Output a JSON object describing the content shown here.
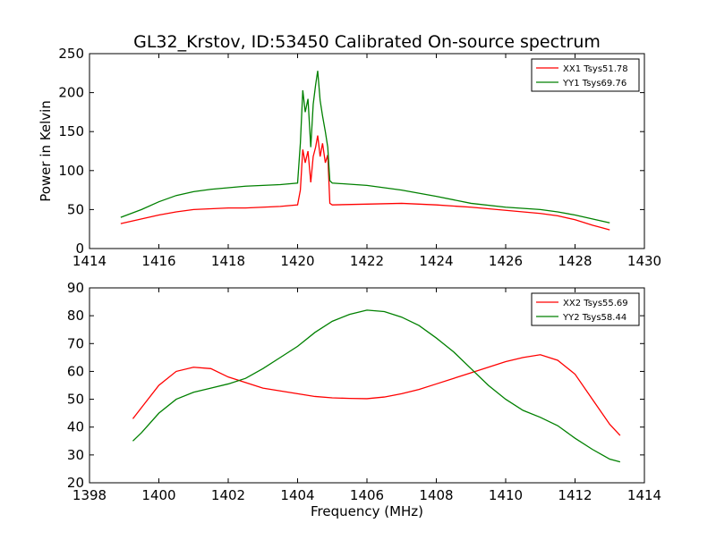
{
  "figure": {
    "title": "GL32_Krstov, ID:53450 Calibrated On-source spectrum"
  },
  "chart_data": [
    {
      "type": "line",
      "title": "GL32_Krstov, ID:53450 Calibrated On-source spectrum",
      "xlabel": "",
      "ylabel": "Power in Kelvin",
      "xlim": [
        1414,
        1430
      ],
      "ylim": [
        0,
        250
      ],
      "xticks": [
        1414,
        1416,
        1418,
        1420,
        1422,
        1424,
        1426,
        1428,
        1430
      ],
      "yticks": [
        0,
        50,
        100,
        150,
        200,
        250
      ],
      "grid": false,
      "legend": "top-right",
      "series": [
        {
          "name": "XX1 Tsys51.78",
          "color": "#ff0000",
          "points": [
            [
              1414.9,
              32
            ],
            [
              1415.5,
              38
            ],
            [
              1416,
              43
            ],
            [
              1416.5,
              47
            ],
            [
              1417,
              50
            ],
            [
              1417.5,
              51
            ],
            [
              1418,
              52
            ],
            [
              1418.5,
              52
            ],
            [
              1419,
              53
            ],
            [
              1419.5,
              54
            ],
            [
              1420,
              56
            ],
            [
              1420.08,
              75
            ],
            [
              1420.15,
              127
            ],
            [
              1420.22,
              110
            ],
            [
              1420.3,
              125
            ],
            [
              1420.38,
              85
            ],
            [
              1420.45,
              118
            ],
            [
              1420.52,
              130
            ],
            [
              1420.58,
              145
            ],
            [
              1420.65,
              118
            ],
            [
              1420.72,
              135
            ],
            [
              1420.8,
              110
            ],
            [
              1420.87,
              120
            ],
            [
              1420.93,
              58
            ],
            [
              1421,
              56
            ],
            [
              1422,
              57
            ],
            [
              1423,
              58
            ],
            [
              1424,
              56
            ],
            [
              1425,
              53
            ],
            [
              1426,
              49
            ],
            [
              1427,
              45
            ],
            [
              1427.5,
              42
            ],
            [
              1428,
              37
            ],
            [
              1428.5,
              30
            ],
            [
              1429,
              24
            ]
          ]
        },
        {
          "name": "YY1 Tsys69.76",
          "color": "#008000",
          "points": [
            [
              1414.9,
              40
            ],
            [
              1415.5,
              50
            ],
            [
              1416,
              60
            ],
            [
              1416.5,
              68
            ],
            [
              1417,
              73
            ],
            [
              1417.5,
              76
            ],
            [
              1418,
              78
            ],
            [
              1418.5,
              80
            ],
            [
              1419,
              81
            ],
            [
              1419.5,
              82
            ],
            [
              1420,
              84
            ],
            [
              1420.08,
              135
            ],
            [
              1420.15,
              203
            ],
            [
              1420.22,
              175
            ],
            [
              1420.3,
              192
            ],
            [
              1420.38,
              130
            ],
            [
              1420.45,
              185
            ],
            [
              1420.52,
              210
            ],
            [
              1420.58,
              228
            ],
            [
              1420.65,
              190
            ],
            [
              1420.72,
              170
            ],
            [
              1420.8,
              150
            ],
            [
              1420.87,
              130
            ],
            [
              1420.93,
              87
            ],
            [
              1421,
              84
            ],
            [
              1422,
              81
            ],
            [
              1423,
              75
            ],
            [
              1424,
              67
            ],
            [
              1425,
              58
            ],
            [
              1426,
              53
            ],
            [
              1427,
              50
            ],
            [
              1427.5,
              47
            ],
            [
              1428,
              43
            ],
            [
              1428.5,
              38
            ],
            [
              1429,
              33
            ]
          ]
        }
      ]
    },
    {
      "type": "line",
      "title": "",
      "xlabel": "Frequency (MHz)",
      "ylabel": "",
      "xlim": [
        1398,
        1414
      ],
      "ylim": [
        20,
        90
      ],
      "xticks": [
        1398,
        1400,
        1402,
        1404,
        1406,
        1408,
        1410,
        1412,
        1414
      ],
      "yticks": [
        20,
        30,
        40,
        50,
        60,
        70,
        80,
        90
      ],
      "grid": false,
      "legend": "top-right",
      "series": [
        {
          "name": "XX2 Tsys55.69",
          "color": "#ff0000",
          "points": [
            [
              1399.25,
              43
            ],
            [
              1399.5,
              47
            ],
            [
              1400,
              55
            ],
            [
              1400.5,
              60
            ],
            [
              1401,
              61.5
            ],
            [
              1401.5,
              61
            ],
            [
              1402,
              58
            ],
            [
              1402.5,
              56
            ],
            [
              1403,
              54
            ],
            [
              1403.5,
              53
            ],
            [
              1404,
              52
            ],
            [
              1404.5,
              51
            ],
            [
              1405,
              50.5
            ],
            [
              1405.5,
              50.3
            ],
            [
              1406,
              50.2
            ],
            [
              1406.5,
              50.8
            ],
            [
              1407,
              52
            ],
            [
              1407.5,
              53.5
            ],
            [
              1408,
              55.5
            ],
            [
              1408.5,
              57.5
            ],
            [
              1409,
              59.5
            ],
            [
              1409.5,
              61.5
            ],
            [
              1410,
              63.5
            ],
            [
              1410.5,
              65
            ],
            [
              1411,
              66
            ],
            [
              1411.5,
              64
            ],
            [
              1412,
              59
            ],
            [
              1412.5,
              50
            ],
            [
              1413,
              41
            ],
            [
              1413.3,
              37
            ]
          ]
        },
        {
          "name": "YY2 Tsys58.44",
          "color": "#008000",
          "points": [
            [
              1399.25,
              35
            ],
            [
              1399.5,
              38
            ],
            [
              1400,
              45
            ],
            [
              1400.5,
              50
            ],
            [
              1401,
              52.5
            ],
            [
              1401.5,
              54
            ],
            [
              1402,
              55.5
            ],
            [
              1402.5,
              57.5
            ],
            [
              1403,
              61
            ],
            [
              1403.5,
              65
            ],
            [
              1404,
              69
            ],
            [
              1404.5,
              74
            ],
            [
              1405,
              78
            ],
            [
              1405.5,
              80.5
            ],
            [
              1406,
              82
            ],
            [
              1406.5,
              81.5
            ],
            [
              1407,
              79.5
            ],
            [
              1407.5,
              76.5
            ],
            [
              1408,
              72
            ],
            [
              1408.5,
              67
            ],
            [
              1409,
              61
            ],
            [
              1409.5,
              55
            ],
            [
              1410,
              50
            ],
            [
              1410.5,
              46
            ],
            [
              1411,
              43.5
            ],
            [
              1411.5,
              40.5
            ],
            [
              1412,
              36
            ],
            [
              1412.5,
              32
            ],
            [
              1413,
              28.5
            ],
            [
              1413.3,
              27.5
            ]
          ]
        }
      ]
    }
  ]
}
